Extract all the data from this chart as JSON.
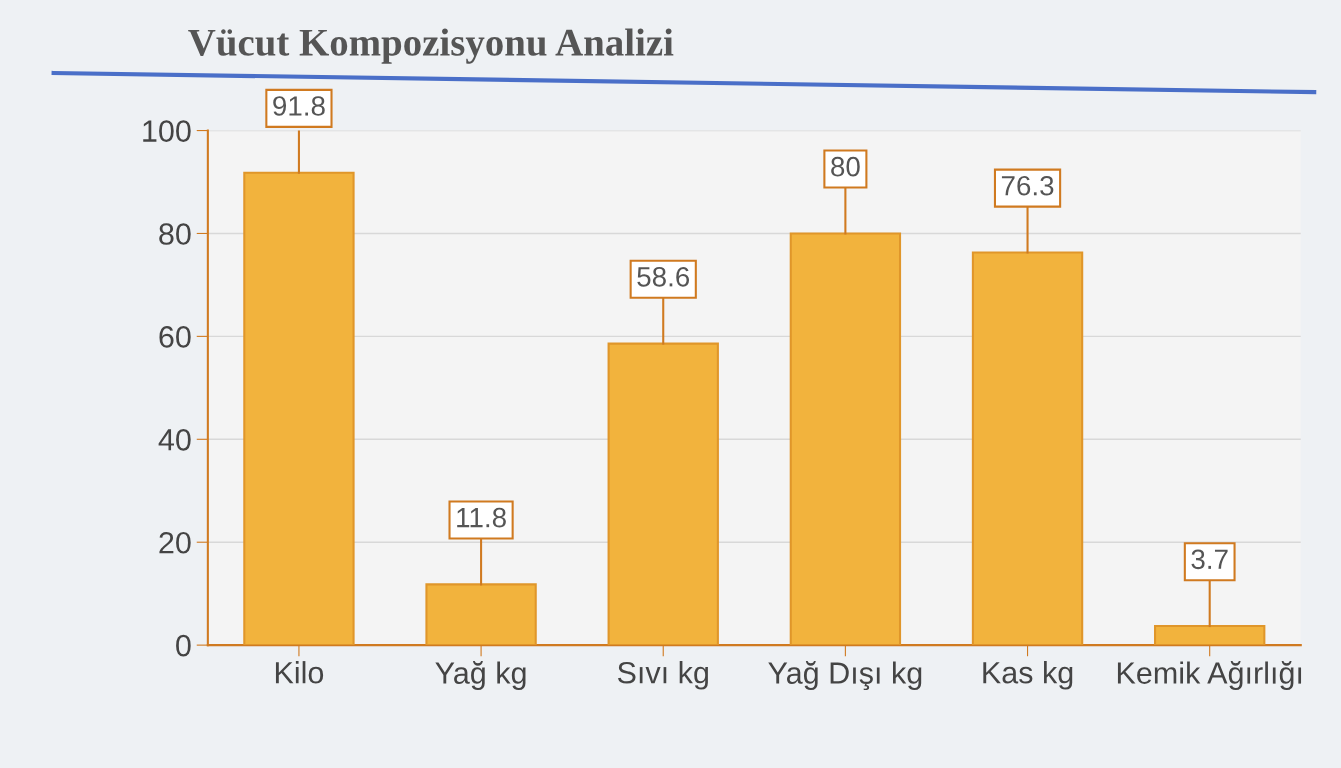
{
  "chart_data": {
    "type": "bar",
    "title": "Vücut Kompozisyonu Analizi",
    "categories": [
      "Kilo",
      "Yağ kg",
      "Sıvı kg",
      "Yağ Dışı kg",
      "Kas kg",
      "Kemik Ağırlığı"
    ],
    "values": [
      91.8,
      11.8,
      58.6,
      80,
      76.3,
      3.7
    ],
    "color": "#f2b33d",
    "ylim": [
      0,
      100
    ],
    "yticks": [
      0,
      20,
      40,
      60,
      80,
      100
    ],
    "grid": "y",
    "data_labels": true
  }
}
